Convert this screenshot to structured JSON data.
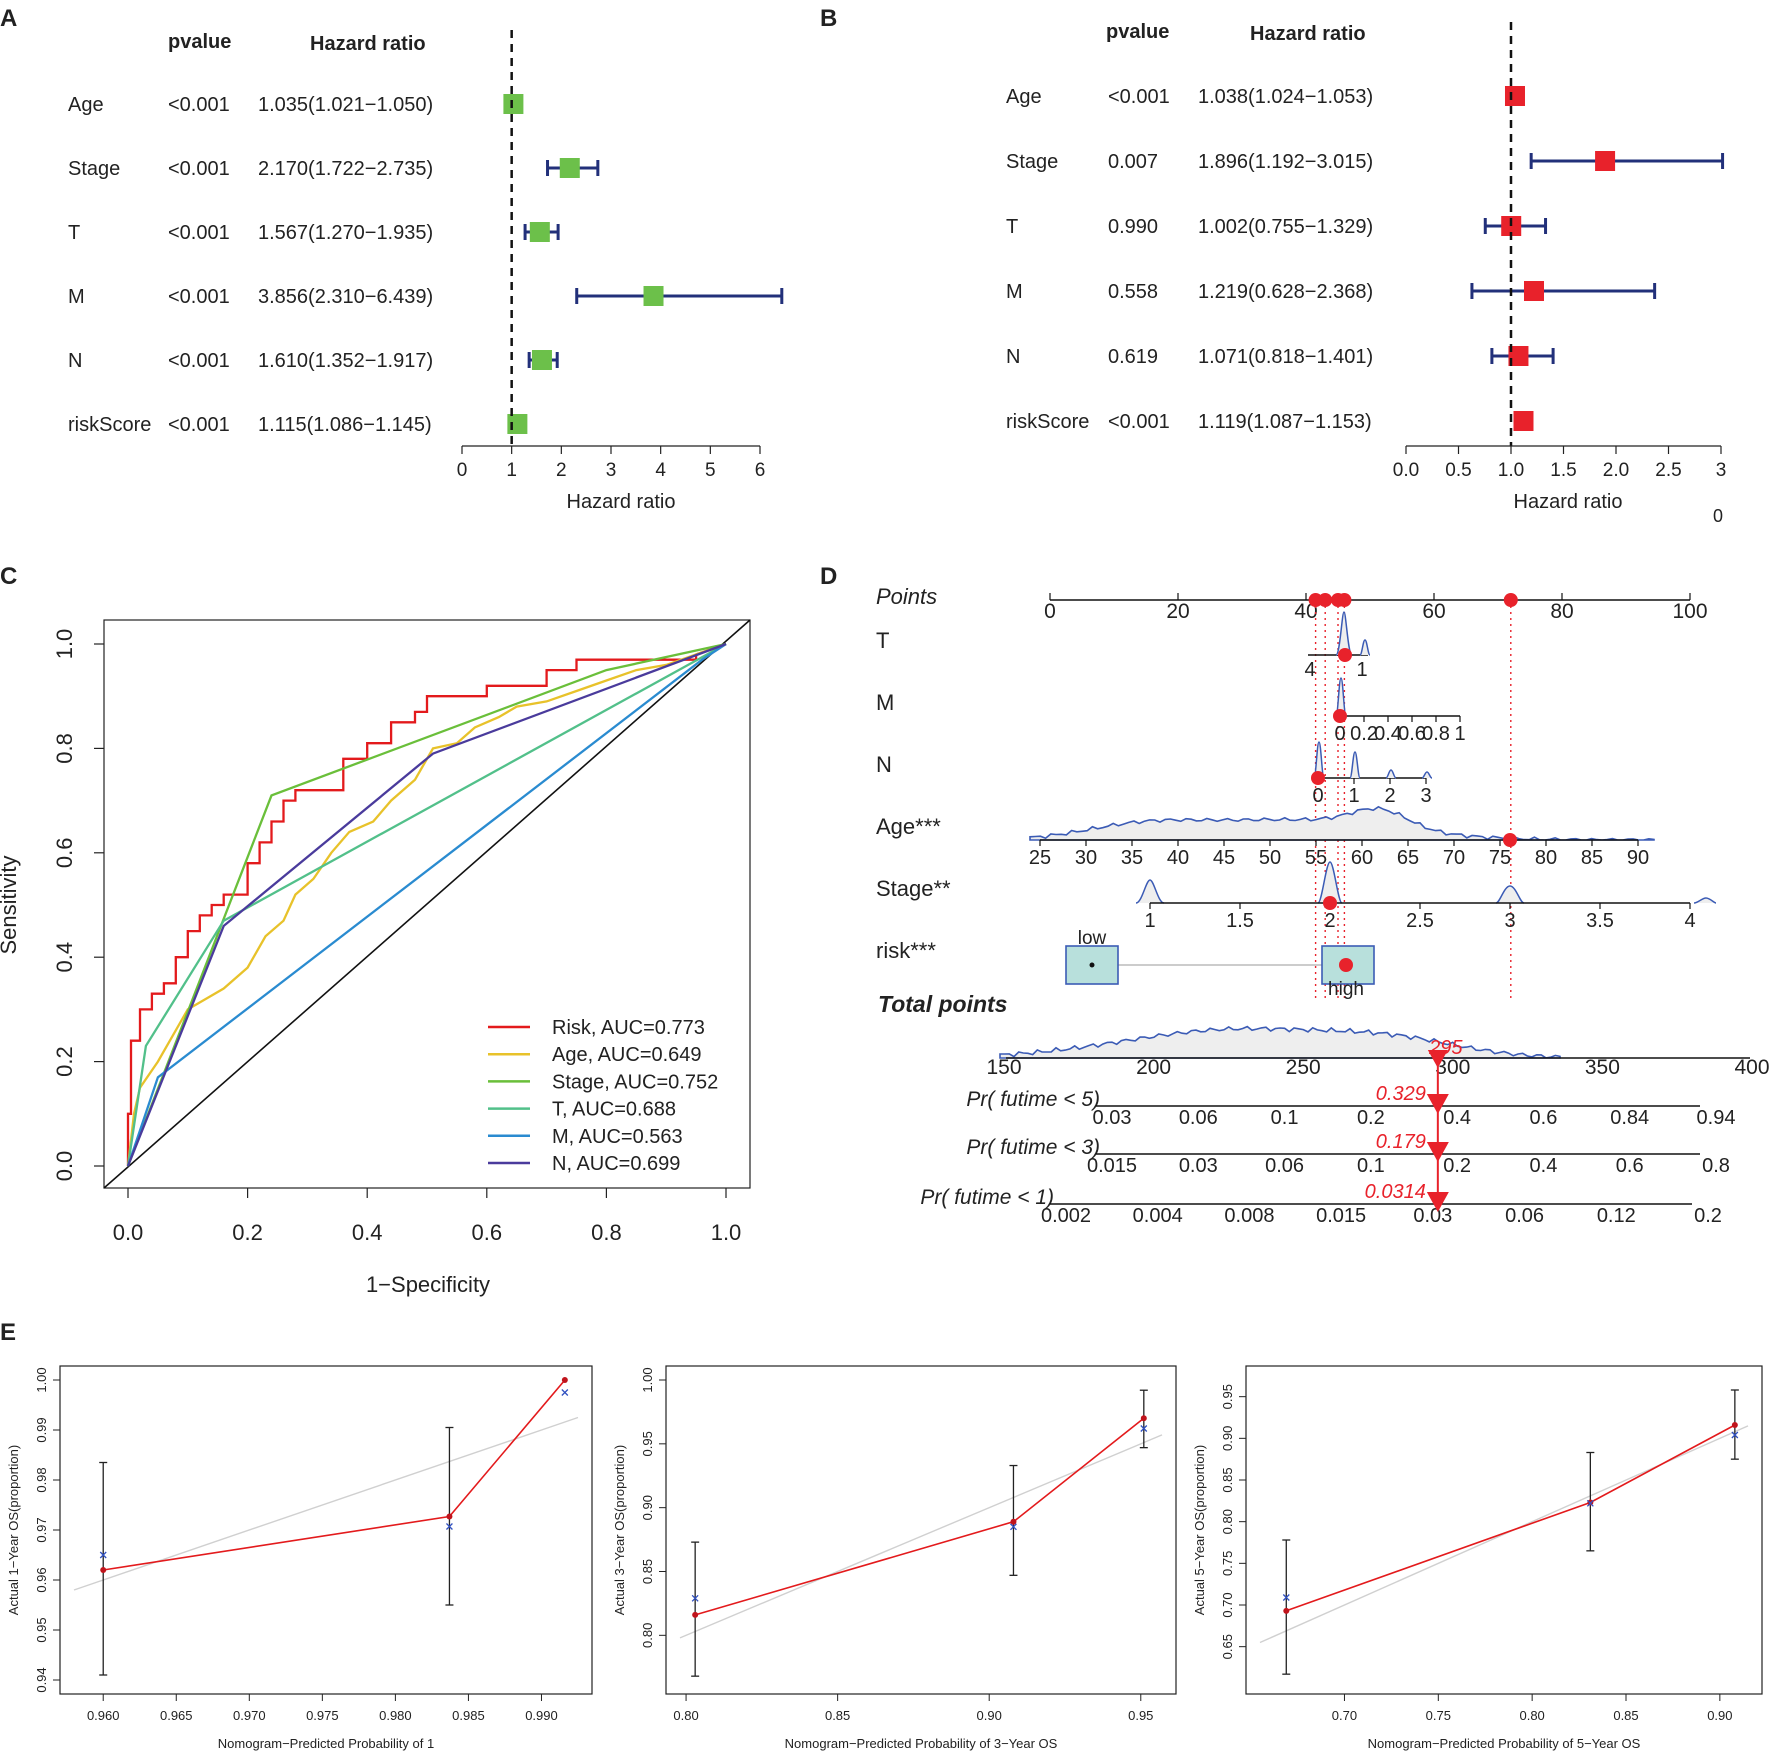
{
  "colors": {
    "green_box": "#6cc04a",
    "red_box": "#e8222b",
    "ci_navy": "#22307a",
    "risk": "#e31a1c",
    "age": "#e8c22a",
    "stage": "#6abf3a",
    "t": "#52c08a",
    "m": "#2a8bd0",
    "n": "#4a3b9c",
    "nomo_blue": "#3b5bb5",
    "cal_blue": "#3050c0"
  },
  "chart_data": [
    {
      "panel": "A",
      "type": "forest",
      "col_pvalue": "pvalue",
      "col_hr": "Hazard ratio",
      "xlabel": "Hazard ratio",
      "xlim": [
        0,
        6
      ],
      "ref_line": 1,
      "ticks": [
        "0",
        "1",
        "2",
        "3",
        "4",
        "5",
        "6"
      ],
      "rows": [
        {
          "label": "Age",
          "p": "<0.001",
          "hr_text": "1.035(1.021−1.050)",
          "hr": 1.035,
          "lo": 1.021,
          "hi": 1.05
        },
        {
          "label": "Stage",
          "p": "<0.001",
          "hr_text": "2.170(1.722−2.735)",
          "hr": 2.17,
          "lo": 1.722,
          "hi": 2.735
        },
        {
          "label": "T",
          "p": "<0.001",
          "hr_text": "1.567(1.270−1.935)",
          "hr": 1.567,
          "lo": 1.27,
          "hi": 1.935
        },
        {
          "label": "M",
          "p": "<0.001",
          "hr_text": "3.856(2.310−6.439)",
          "hr": 3.856,
          "lo": 2.31,
          "hi": 6.439
        },
        {
          "label": "N",
          "p": "<0.001",
          "hr_text": "1.610(1.352−1.917)",
          "hr": 1.61,
          "lo": 1.352,
          "hi": 1.917
        },
        {
          "label": "riskScore",
          "p": "<0.001",
          "hr_text": "1.115(1.086−1.145)",
          "hr": 1.115,
          "lo": 1.086,
          "hi": 1.145
        }
      ]
    },
    {
      "panel": "B",
      "type": "forest",
      "col_pvalue": "pvalue",
      "col_hr": "Hazard ratio",
      "xlabel": "Hazard ratio",
      "xlim": [
        0,
        3
      ],
      "ref_line": 1,
      "ticks": [
        "0.0",
        "0.5",
        "1.0",
        "1.5",
        "2.0",
        "2.5",
        "3"
      ],
      "extra_mark": "0",
      "rows": [
        {
          "label": "Age",
          "p": "<0.001",
          "hr_text": "1.038(1.024−1.053)",
          "hr": 1.038,
          "lo": 1.024,
          "hi": 1.053
        },
        {
          "label": "Stage",
          "p": "0.007",
          "hr_text": "1.896(1.192−3.015)",
          "hr": 1.896,
          "lo": 1.192,
          "hi": 3.015
        },
        {
          "label": "T",
          "p": "0.990",
          "hr_text": "1.002(0.755−1.329)",
          "hr": 1.002,
          "lo": 0.755,
          "hi": 1.329
        },
        {
          "label": "M",
          "p": "0.558",
          "hr_text": "1.219(0.628−2.368)",
          "hr": 1.219,
          "lo": 0.628,
          "hi": 2.368
        },
        {
          "label": "N",
          "p": "0.619",
          "hr_text": "1.071(0.818−1.401)",
          "hr": 1.071,
          "lo": 0.818,
          "hi": 1.401
        },
        {
          "label": "riskScore",
          "p": "<0.001",
          "hr_text": "1.119(1.087−1.153)",
          "hr": 1.119,
          "lo": 1.087,
          "hi": 1.153
        }
      ]
    },
    {
      "panel": "C",
      "type": "line",
      "xlabel": "1−Specificity",
      "ylabel": "Sensitivity",
      "xlim": [
        0,
        1
      ],
      "ylim": [
        0,
        1
      ],
      "xticks": [
        "0.0",
        "0.2",
        "0.4",
        "0.6",
        "0.8",
        "1.0"
      ],
      "yticks": [
        "0.0",
        "0.2",
        "0.4",
        "0.6",
        "0.8",
        "1.0"
      ],
      "series": [
        {
          "name": "Risk, AUC=0.773",
          "color": "risk",
          "x": [
            0,
            0,
            0.005,
            0.005,
            0.02,
            0.02,
            0.04,
            0.04,
            0.06,
            0.06,
            0.08,
            0.08,
            0.1,
            0.1,
            0.12,
            0.12,
            0.14,
            0.14,
            0.16,
            0.16,
            0.2,
            0.2,
            0.22,
            0.22,
            0.24,
            0.24,
            0.26,
            0.26,
            0.28,
            0.28,
            0.36,
            0.36,
            0.4,
            0.4,
            0.44,
            0.44,
            0.48,
            0.48,
            0.5,
            0.5,
            0.6,
            0.6,
            0.7,
            0.7,
            0.75,
            0.75,
            0.95,
            0.95,
            1
          ],
          "y": [
            0,
            0.1,
            0.1,
            0.24,
            0.24,
            0.3,
            0.3,
            0.33,
            0.33,
            0.35,
            0.35,
            0.4,
            0.4,
            0.45,
            0.45,
            0.48,
            0.48,
            0.5,
            0.5,
            0.52,
            0.52,
            0.58,
            0.58,
            0.62,
            0.62,
            0.66,
            0.66,
            0.7,
            0.7,
            0.72,
            0.72,
            0.78,
            0.78,
            0.81,
            0.81,
            0.85,
            0.85,
            0.87,
            0.87,
            0.9,
            0.9,
            0.92,
            0.92,
            0.95,
            0.95,
            0.97,
            0.97,
            0.98,
            1
          ]
        },
        {
          "name": "Age, AUC=0.649",
          "color": "age",
          "x": [
            0,
            0.01,
            0.02,
            0.05,
            0.08,
            0.1,
            0.13,
            0.16,
            0.2,
            0.23,
            0.26,
            0.28,
            0.31,
            0.34,
            0.37,
            0.41,
            0.44,
            0.48,
            0.51,
            0.55,
            0.58,
            0.62,
            0.65,
            0.7,
            0.75,
            0.8,
            0.85,
            0.9,
            0.95,
            1
          ],
          "y": [
            0,
            0.1,
            0.15,
            0.2,
            0.26,
            0.3,
            0.32,
            0.34,
            0.38,
            0.44,
            0.47,
            0.52,
            0.55,
            0.6,
            0.64,
            0.66,
            0.7,
            0.74,
            0.8,
            0.81,
            0.84,
            0.86,
            0.88,
            0.89,
            0.91,
            0.93,
            0.95,
            0.96,
            0.98,
            1
          ]
        },
        {
          "name": "Stage, AUC=0.752",
          "color": "stage",
          "x": [
            0,
            0.24,
            0.8,
            1
          ],
          "y": [
            0,
            0.71,
            0.95,
            1
          ]
        },
        {
          "name": "T, AUC=0.688",
          "color": "t",
          "x": [
            0,
            0.03,
            0.16,
            1
          ],
          "y": [
            0,
            0.23,
            0.47,
            1
          ]
        },
        {
          "name": "M, AUC=0.563",
          "color": "m",
          "x": [
            0,
            0.05,
            0.96,
            1
          ],
          "y": [
            0,
            0.17,
            0.97,
            1
          ]
        },
        {
          "name": "N, AUC=0.699",
          "color": "n",
          "x": [
            0,
            0.16,
            0.51,
            1
          ],
          "y": [
            0,
            0.46,
            0.79,
            1
          ]
        }
      ]
    },
    {
      "panel": "D",
      "type": "nomogram",
      "points_label": "Points",
      "points_ticks": [
        "0",
        "20",
        "40",
        "60",
        "80",
        "100"
      ],
      "points_selected": [
        41.5,
        43,
        45,
        46,
        72
      ],
      "T": {
        "label": "T",
        "ticks": [
          "4",
          "1"
        ]
      },
      "M": {
        "label": "M",
        "ticks": [
          "0",
          "0.2",
          "0.4",
          "0.6",
          "0.8",
          "1"
        ]
      },
      "N": {
        "label": "N",
        "ticks": [
          "0",
          "1",
          "2",
          "3"
        ]
      },
      "Age": {
        "label": "Age***",
        "ticks": [
          "25",
          "30",
          "35",
          "40",
          "45",
          "50",
          "55",
          "60",
          "65",
          "70",
          "75",
          "80",
          "85",
          "90"
        ],
        "selected": 76
      },
      "Stage": {
        "label": "Stage**",
        "ticks": [
          "1",
          "1.5",
          "2",
          "2.5",
          "3",
          "3.5",
          "4"
        ],
        "selected": 2
      },
      "risk": {
        "label": "risk***",
        "low": "low",
        "high": "high"
      },
      "total": {
        "label": "Total points",
        "ticks": [
          "150",
          "200",
          "250",
          "300",
          "350",
          "400"
        ],
        "selected": 295,
        "selected_text": "295"
      },
      "pr5": {
        "label": "Pr( futime < 5)",
        "ticks": [
          "0.03",
          "0.06",
          "0.1",
          "0.2",
          "0.4",
          "0.6",
          "0.84",
          "0.94"
        ],
        "selected_text": "0.329"
      },
      "pr3": {
        "label": "Pr( futime < 3)",
        "ticks": [
          "0.015",
          "0.03",
          "0.06",
          "0.1",
          "0.2",
          "0.4",
          "0.6",
          "0.8"
        ],
        "selected_text": "0.179"
      },
      "pr1": {
        "label": "Pr( futime < 1)",
        "ticks": [
          "0.002",
          "0.004",
          "0.008",
          "0.015",
          "0.03",
          "0.06",
          "0.12",
          "0.2"
        ],
        "selected_text": "0.0314"
      }
    },
    {
      "panel": "E1",
      "type": "scatter",
      "xlabel": "Nomogram−Predicted Probability of 1",
      "ylabel": "Actual 1−Year OS(proportion)",
      "xlim": [
        0.958,
        0.9925
      ],
      "ylim": [
        0.94,
        1.0
      ],
      "xticks": [
        "0.960",
        "0.965",
        "0.970",
        "0.975",
        "0.980",
        "0.985",
        "0.990"
      ],
      "yticks": [
        "0.94",
        "0.95",
        "0.96",
        "0.97",
        "0.98",
        "0.99",
        "1.00"
      ],
      "points": [
        {
          "x": 0.96,
          "y": 0.962,
          "lo": 0.941,
          "hi": 0.9835,
          "xcorr": 0.965
        },
        {
          "x": 0.9837,
          "y": 0.9727,
          "lo": 0.955,
          "hi": 0.9905,
          "xcorr": 0.9707
        },
        {
          "x": 0.9916,
          "y": 1.0,
          "lo": 1.0,
          "hi": 1.0,
          "xcorr": 0.9975
        }
      ],
      "ideal": [
        [
          0.958,
          0.958
        ],
        [
          0.9925,
          0.9925
        ]
      ]
    },
    {
      "panel": "E2",
      "type": "scatter",
      "xlabel": "Nomogram−Predicted Probability of 3−Year OS",
      "ylabel": "Actual 3−Year OS(proportion)",
      "xlim": [
        0.798,
        0.957
      ],
      "ylim": [
        0.765,
        1.0
      ],
      "xticks": [
        "0.80",
        "0.85",
        "0.90",
        "0.95"
      ],
      "yticks": [
        "0.80",
        "0.85",
        "0.90",
        "0.95",
        "1.00"
      ],
      "points": [
        {
          "x": 0.803,
          "y": 0.816,
          "lo": 0.768,
          "hi": 0.873,
          "xcorr": 0.829
        },
        {
          "x": 0.908,
          "y": 0.889,
          "lo": 0.847,
          "hi": 0.933,
          "xcorr": 0.885
        },
        {
          "x": 0.951,
          "y": 0.97,
          "lo": 0.947,
          "hi": 0.992,
          "xcorr": 0.962
        }
      ],
      "ideal": [
        [
          0.798,
          0.798
        ],
        [
          0.957,
          0.957
        ]
      ]
    },
    {
      "panel": "E3",
      "type": "scatter",
      "xlabel": "Nomogram−Predicted Probability of 5−Year OS",
      "ylabel": "Actual 5−Year OS(proportion)",
      "xlim": [
        0.655,
        0.915
      ],
      "ylim": [
        0.61,
        0.97
      ],
      "xticks": [
        "0.70",
        "0.75",
        "0.80",
        "0.85",
        "0.90"
      ],
      "yticks": [
        "0.65",
        "0.70",
        "0.75",
        "0.80",
        "0.85",
        "0.90",
        "0.95"
      ],
      "points": [
        {
          "x": 0.669,
          "y": 0.693,
          "lo": 0.617,
          "hi": 0.778,
          "xcorr": 0.709
        },
        {
          "x": 0.831,
          "y": 0.823,
          "lo": 0.765,
          "hi": 0.883,
          "xcorr": 0.822
        },
        {
          "x": 0.908,
          "y": 0.916,
          "lo": 0.875,
          "hi": 0.958,
          "xcorr": 0.904
        }
      ],
      "ideal": [
        [
          0.655,
          0.655
        ],
        [
          0.915,
          0.915
        ]
      ]
    }
  ],
  "panel_letters": [
    "A",
    "B",
    "C",
    "D",
    "E"
  ]
}
